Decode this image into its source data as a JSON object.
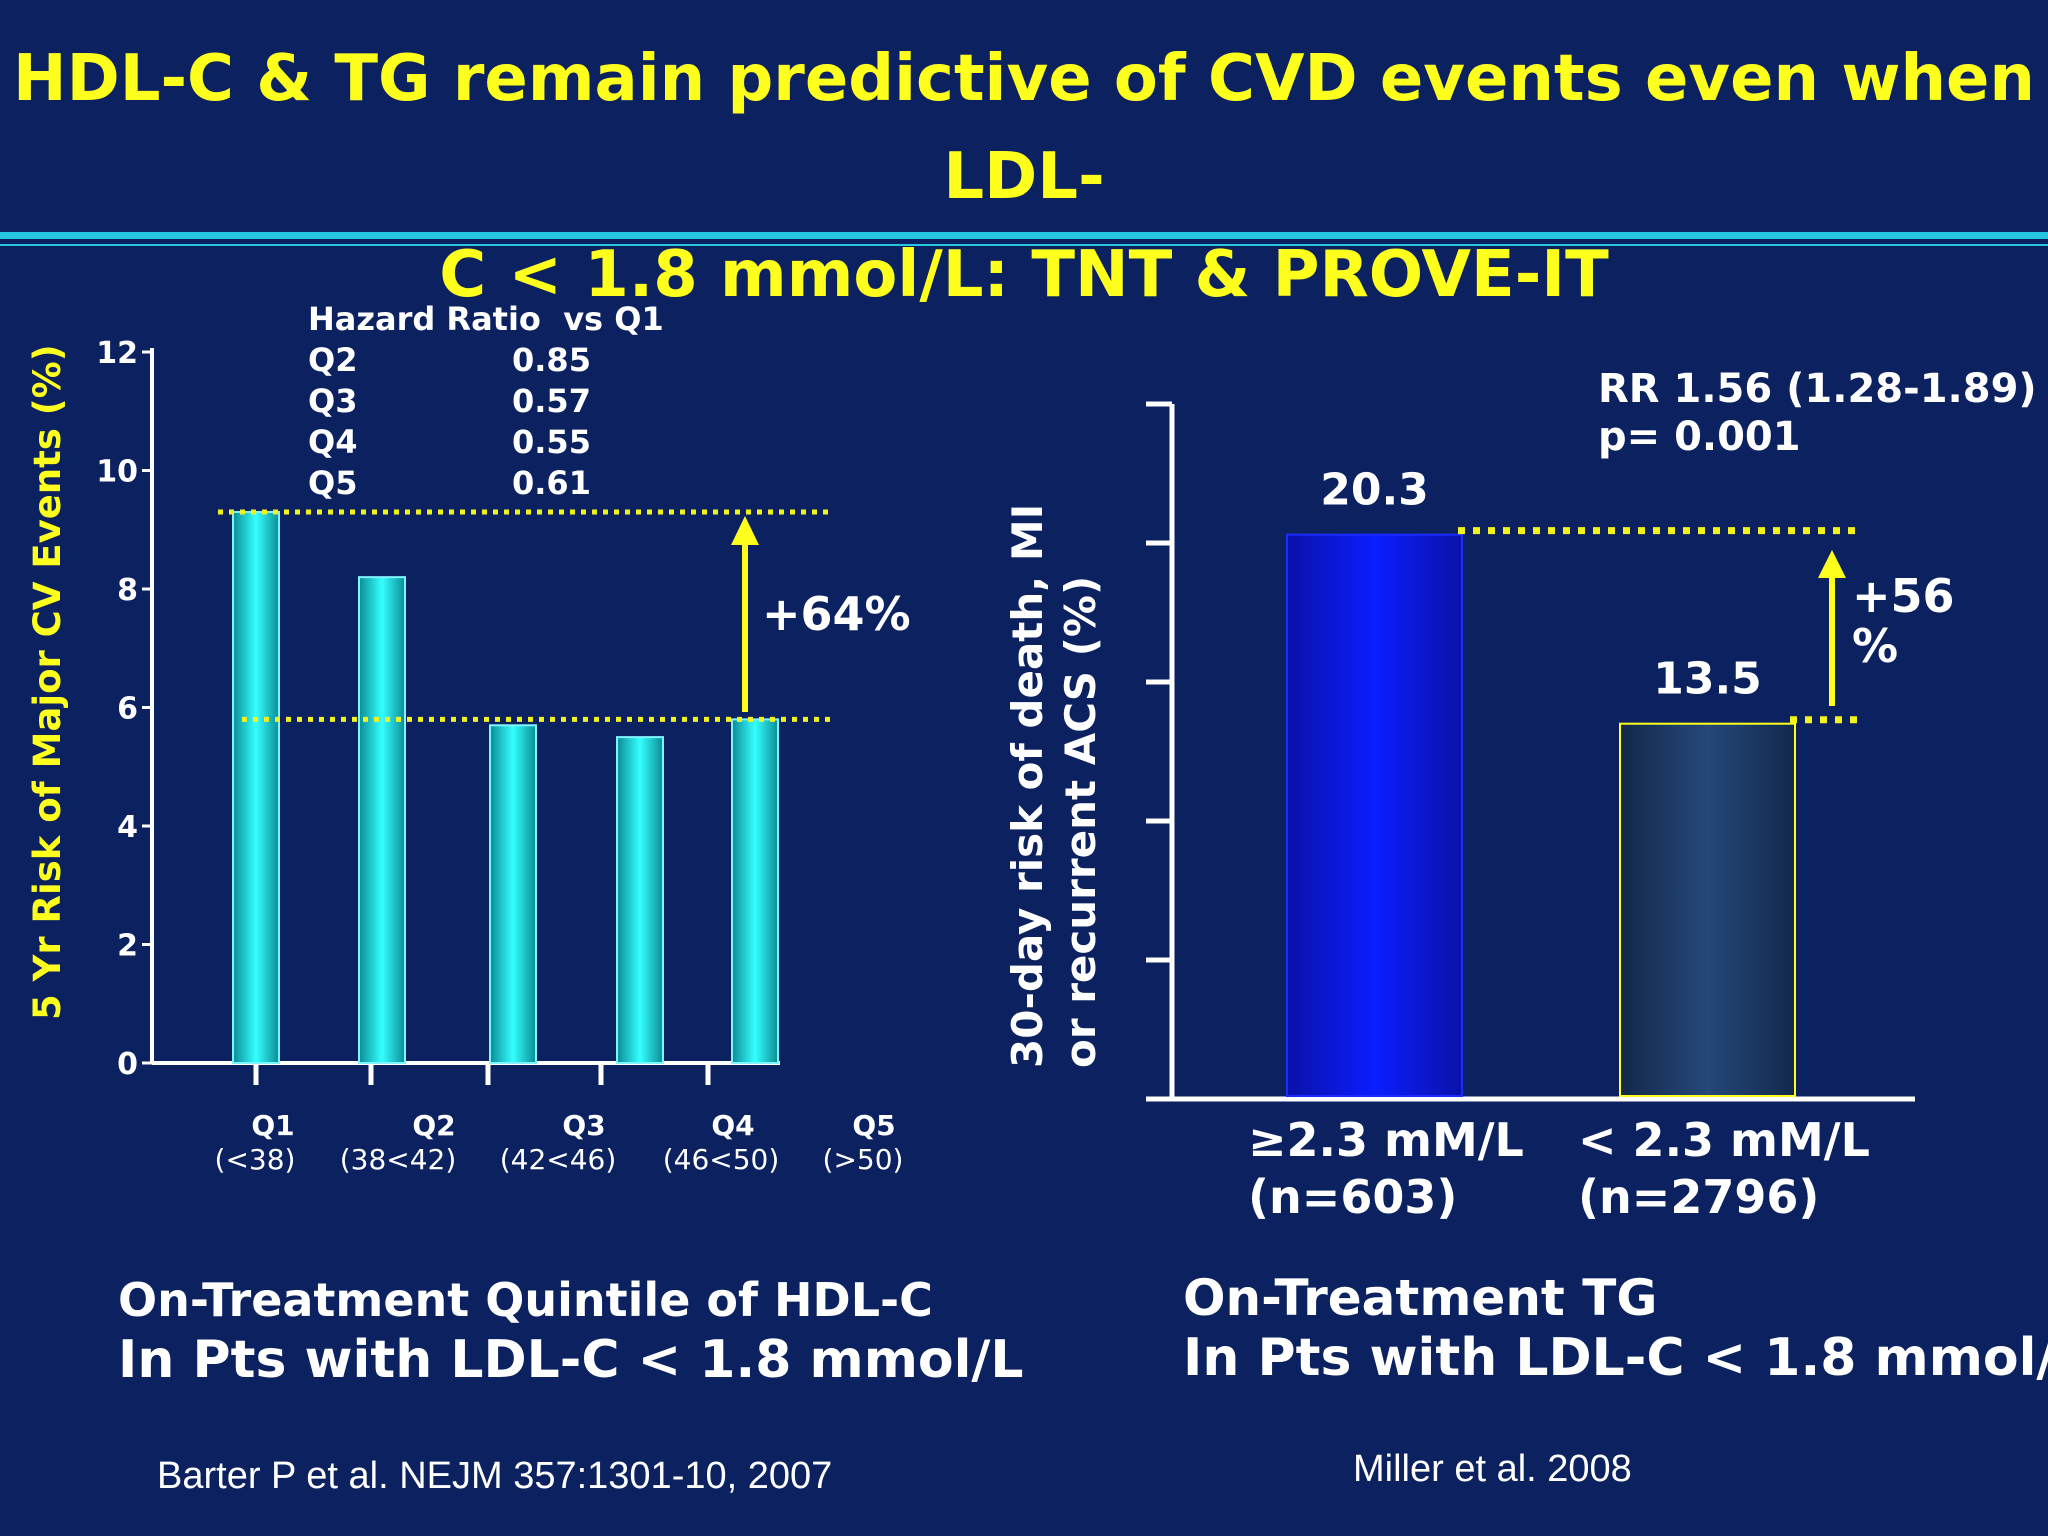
{
  "slide": {
    "title_line1": "HDL-C & TG remain predictive of CVD events even when LDL-",
    "title_line2": "C < 1.8 mmol/L: TNT & PROVE-IT",
    "colors": {
      "background": "#0b2160",
      "title": "#ffff1e",
      "accent_rule": "#27c5e0",
      "bar_cyan": "#12e3e3",
      "dotted_line": "#f2f21e"
    }
  },
  "left": {
    "caption_line1": "On-Treatment Quintile of HDL-C",
    "caption_line2": "In Pts with LDL-C < 1.8 mmol/L",
    "citation": "Barter P et al. NEJM 357:1301-10, 2007",
    "hr_table": {
      "header": "Hazard Ratio  vs Q1",
      "rows": [
        {
          "q": "Q2",
          "v": "0.85"
        },
        {
          "q": "Q3",
          "v": "0.57"
        },
        {
          "q": "Q4",
          "v": "0.55"
        },
        {
          "q": "Q5",
          "v": "0.61"
        }
      ]
    },
    "annotation": "+64%"
  },
  "right": {
    "caption_line1": "On-Treatment TG",
    "caption_line2": "In Pts with LDL-C < 1.8 mmol/",
    "citation": "Miller et al. 2008",
    "rr_line1": "RR 1.56 (1.28-1.89)",
    "rr_line2": "p= 0.001",
    "annotation_line1": "+56",
    "annotation_line2": "%"
  },
  "chart_data": [
    {
      "type": "bar",
      "ylabel": "5 Yr Risk of Major CV Events (%)",
      "ylim": [
        0,
        12
      ],
      "yticks": [
        0,
        2,
        4,
        6,
        8,
        10,
        12
      ],
      "categories": [
        "Q1",
        "Q2",
        "Q3",
        "Q4",
        "Q5"
      ],
      "category_sublabels": [
        "(<38)",
        "(38<42)",
        "(42<46)",
        "(46<50)",
        "(>50)"
      ],
      "values": [
        9.3,
        8.2,
        5.7,
        5.5,
        5.8
      ],
      "reference_lines": [
        9.3,
        5.8
      ],
      "legend": "none"
    },
    {
      "type": "bar",
      "ylabel_line1": "30-day risk of death, MI",
      "ylabel_line2": "or recurrent ACS (%)",
      "ylim": [
        0,
        25
      ],
      "ytick_count": 6,
      "categories": [
        "≥2.3 mM/L",
        "< 2.3 mM/L"
      ],
      "category_sublabels": [
        "(n=603)",
        "(n=2796)"
      ],
      "values": [
        20.3,
        13.5
      ],
      "value_labels": [
        "20.3",
        "13.5"
      ],
      "reference_lines": [
        20.3,
        13.5
      ],
      "legend": "none"
    }
  ]
}
